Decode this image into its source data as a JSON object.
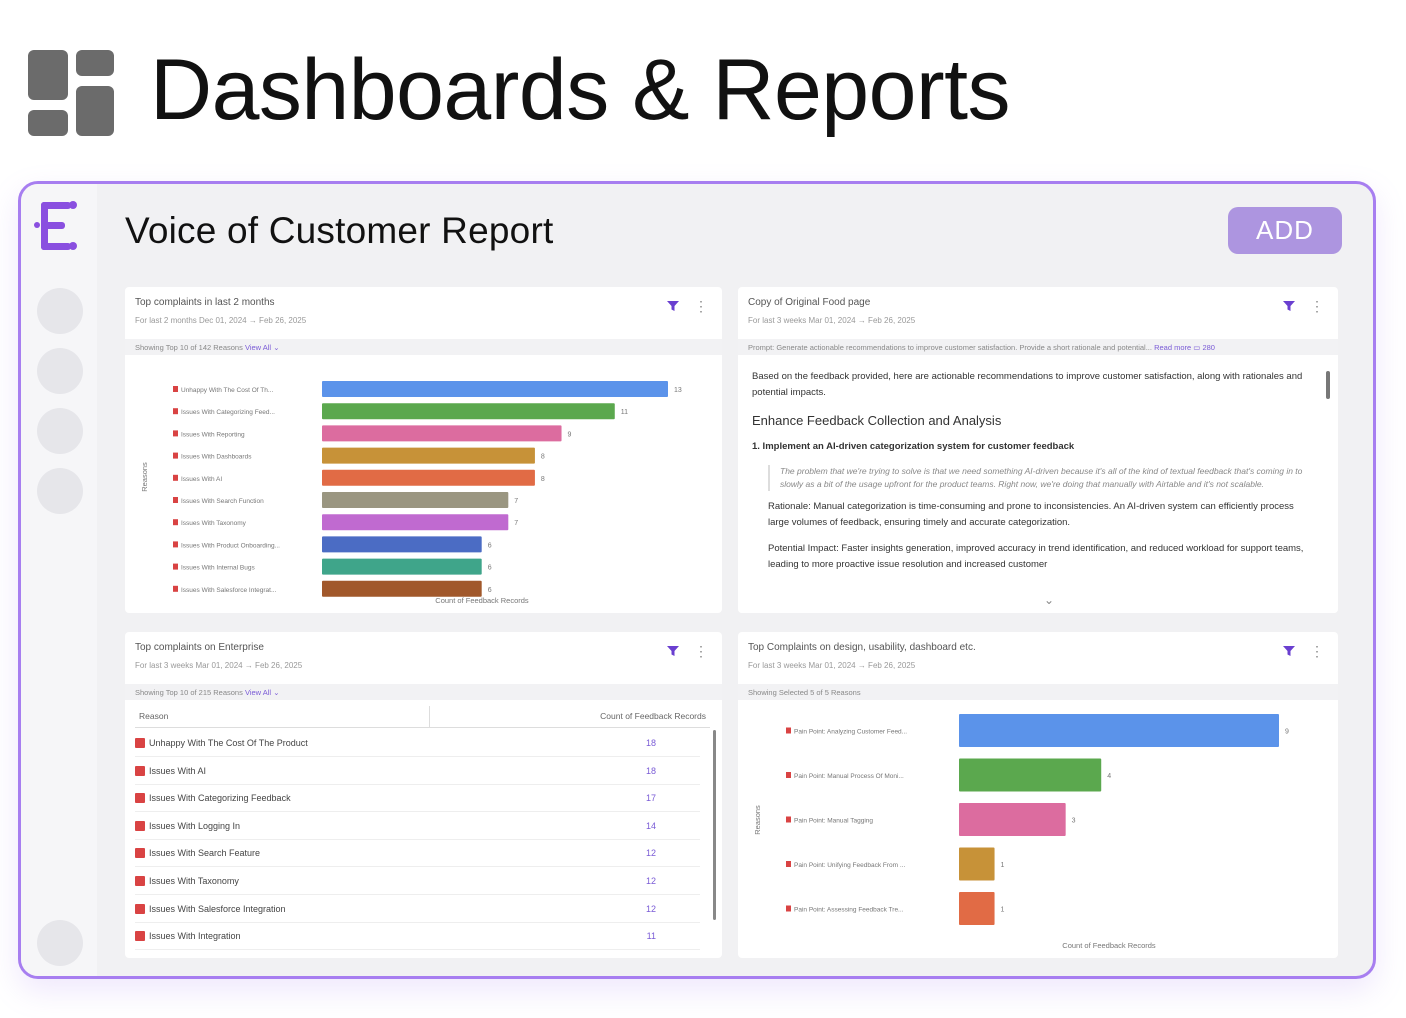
{
  "header": {
    "logo_icon": "dashboard-grid-icon",
    "title": "Dashboards & Reports"
  },
  "app": {
    "brand_icon": "brand-e-icon",
    "report_title": "Voice of Customer Report",
    "add_label": "ADD",
    "accent": "#a77ef0",
    "add_color": "#ad95e0"
  },
  "panels": {
    "top_left": {
      "title": "Top complaints in last 2 months",
      "subtitle": "For last 2 months Dec 01, 2024 → Feb 26, 2025",
      "strip_text": "Showing Top 10 of 142 Reasons",
      "strip_link": "View All",
      "chart_data": {
        "type": "bar",
        "orientation": "horizontal",
        "categories": [
          "Unhappy With The Cost Of Th...",
          "Issues With Categorizing Feed...",
          "Issues With Reporting",
          "Issues With Dashboards",
          "Issues With AI",
          "Issues With Search Function",
          "Issues With Taxonomy",
          "Issues With Product Onboarding...",
          "Issues With Internal Bugs",
          "Issues With Salesforce Integrat..."
        ],
        "values": [
          13,
          11,
          9,
          8,
          8,
          7,
          7,
          6,
          6,
          6
        ],
        "colors": [
          "#5b93ea",
          "#5ba84e",
          "#dc6c9f",
          "#c79238",
          "#e16b45",
          "#9a9681",
          "#c06ad0",
          "#4b6cc4",
          "#3fa58a",
          "#a1582b"
        ],
        "ylabel": "Reasons",
        "xlabel": "Count of Feedback Records",
        "xlim": [
          0,
          13
        ]
      }
    },
    "top_right": {
      "title": "Copy of Original Food page",
      "subtitle": "For last 3 weeks Mar 01, 2024 → Feb 26, 2025",
      "strip_text": "Prompt: Generate actionable recommendations to improve customer satisfaction. Provide a short rationale and potential...",
      "strip_link": "Read more",
      "strip_count": "280",
      "intro": "Based on the feedback provided, here are actionable recommendations to improve customer satisfaction, along with rationales and potential impacts.",
      "heading": "Enhance Feedback Collection and Analysis",
      "item": "1.  Implement an AI-driven categorization system for customer feedback",
      "quote": "The problem that we're trying to solve is that we need something AI-driven because it's all of the kind of textual feedback that's coming in to slowly as a bit of the usage upfront for the product teams. Right now, we're doing that manually with Airtable and it's not scalable.",
      "rationale": "Rationale: Manual categorization is time-consuming and prone to inconsistencies. An AI-driven system can efficiently process large volumes of feedback, ensuring timely and accurate categorization.",
      "impact": "Potential Impact: Faster insights generation, improved accuracy in trend identification, and reduced workload for support teams, leading to more proactive issue resolution and increased customer"
    },
    "bottom_left": {
      "title": "Top complaints on Enterprise",
      "subtitle": "For last 3 weeks Mar 01, 2024 → Feb 26, 2025",
      "strip_text": "Showing Top 10 of 215 Reasons",
      "strip_link": "View All",
      "col_reason": "Reason",
      "col_count": "Count of Feedback Records",
      "rows": [
        {
          "reason": "Unhappy With The Cost Of The Product",
          "count": "18"
        },
        {
          "reason": "Issues With AI",
          "count": "18"
        },
        {
          "reason": "Issues With Categorizing Feedback",
          "count": "17"
        },
        {
          "reason": "Issues With Logging In",
          "count": "14"
        },
        {
          "reason": "Issues With Search Feature",
          "count": "12"
        },
        {
          "reason": "Issues With Taxonomy",
          "count": "12"
        },
        {
          "reason": "Issues With Salesforce Integration",
          "count": "12"
        },
        {
          "reason": "Issues With Integration",
          "count": "11"
        }
      ]
    },
    "bottom_right": {
      "title": "Top Complaints on design, usability, dashboard etc.",
      "subtitle": "For last 3 weeks Mar 01, 2024 → Feb 26, 2025",
      "strip_text": "Showing Selected 5 of 5 Reasons",
      "chart_data": {
        "type": "bar",
        "orientation": "horizontal",
        "categories": [
          "Pain Point: Analyzing Customer Feed...",
          "Pain Point: Manual Process Of Moni...",
          "Pain Point: Manual Tagging",
          "Pain Point: Unifying Feedback From ...",
          "Pain Point: Assessing Feedback Tre..."
        ],
        "values": [
          9,
          4,
          3,
          1,
          1
        ],
        "colors": [
          "#5b93ea",
          "#5ba84e",
          "#dc6c9f",
          "#c79238",
          "#e16b45"
        ],
        "ylabel": "Reasons",
        "xlabel": "Count of Feedback Records",
        "xlim": [
          0,
          9
        ]
      }
    }
  }
}
